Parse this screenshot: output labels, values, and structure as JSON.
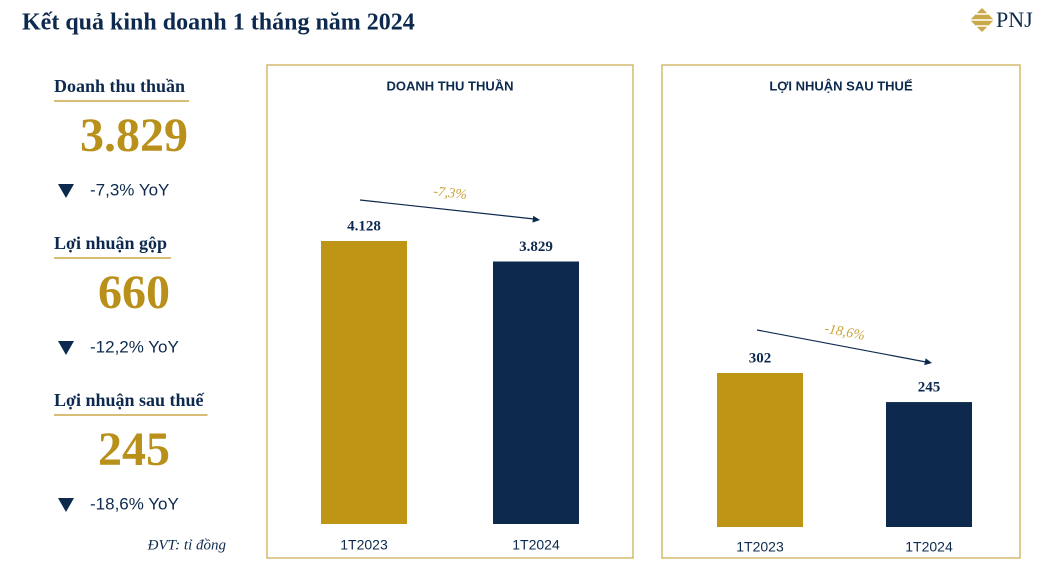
{
  "header": {
    "title": "Kết quả kinh doanh 1 tháng năm 2024",
    "logo": "PNJ"
  },
  "kpis": [
    {
      "label": "Doanh thu thuần",
      "value": "3.829",
      "change": "-7,3% YoY"
    },
    {
      "label": "Lợi nhuận gộp",
      "value": "660",
      "change": "-12,2% YoY"
    },
    {
      "label": "Lợi nhuận sau thuế",
      "value": "245",
      "change": "-18,6% YoY"
    }
  ],
  "note": "ĐVT: tỉ đồng",
  "chart_data": [
    {
      "type": "bar",
      "title": "DOANH THU THUẦN",
      "categories": [
        "1T2023",
        "1T2024"
      ],
      "values": [
        4128,
        3829
      ],
      "value_labels": [
        "4.128",
        "3.829"
      ],
      "colors": [
        "#bf9516",
        "#0d2a4e"
      ],
      "annotation": "-7,3%"
    },
    {
      "type": "bar",
      "title": "LỢI NHUẬN SAU THUẾ",
      "categories": [
        "1T2023",
        "1T2024"
      ],
      "values": [
        302,
        245
      ],
      "colors": [
        "#bf9516",
        "#0d2a4e"
      ],
      "annotation": "-18,6%"
    }
  ]
}
